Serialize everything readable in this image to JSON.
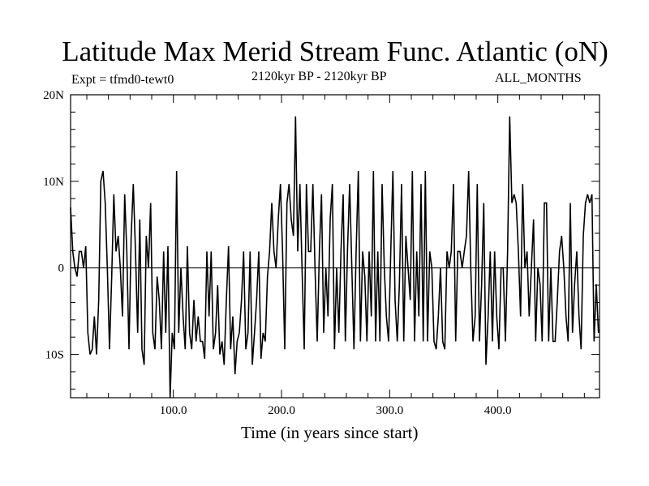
{
  "chart_data": {
    "type": "line",
    "title": "Latitude Max Merid Stream Func. Atlantic (oN)",
    "subtitle_left": "Expt = tfmd0-tewt0",
    "subtitle_center": "2120kyr BP - 2120kyr BP",
    "subtitle_right": "ALL_MONTHS",
    "xlabel": "Time (in years since start)",
    "ylabel": "",
    "xlim": [
      5,
      494
    ],
    "ylim": [
      -15,
      20
    ],
    "x_ticks": [
      {
        "value": 100,
        "label": "100.0"
      },
      {
        "value": 200,
        "label": "200.0"
      },
      {
        "value": 300,
        "label": "300.0"
      },
      {
        "value": 400,
        "label": "400.0"
      }
    ],
    "y_ticks": [
      {
        "value": 20,
        "label": "20N"
      },
      {
        "value": 10,
        "label": "10N"
      },
      {
        "value": 0,
        "label": "0"
      },
      {
        "value": -10,
        "label": "10S"
      }
    ],
    "reference_line": 0,
    "grid": false,
    "x_start": 5,
    "x_step": 2,
    "values": [
      7,
      1.9,
      0,
      -1,
      1.9,
      1.9,
      0,
      2.5,
      -7.5,
      -10,
      -9.4,
      -5.6,
      -10,
      -3.7,
      10,
      11.2,
      7.5,
      0,
      -9.4,
      -1,
      8.5,
      1.9,
      3.7,
      0,
      -5.6,
      8.5,
      1.9,
      -9.4,
      3.7,
      9.7,
      1.9,
      -7.5,
      5.6,
      -9.4,
      -11.2,
      3.7,
      0,
      7.5,
      -7.5,
      -9.4,
      -1,
      -3.7,
      -9.4,
      1.9,
      -7.5,
      2.5,
      -15,
      -7.5,
      -9.4,
      11.2,
      -7.5,
      0,
      -5.6,
      -9.4,
      2.5,
      -7.5,
      -9.4,
      -3.7,
      -8.5,
      -5.6,
      -8.5,
      -8.5,
      -10.5,
      1.9,
      -5.6,
      1.9,
      -9.4,
      -7.5,
      -2,
      -10,
      -8.5,
      -11.2,
      -3.7,
      2.5,
      -9.4,
      -5.6,
      -12.3,
      -8.5,
      -7.5,
      -3.7,
      1.9,
      -9.4,
      -7.5,
      1.9,
      -11.2,
      -7.5,
      -3.7,
      1.9,
      -10.5,
      -7.5,
      -8.5,
      -1,
      1.9,
      7.5,
      1.9,
      0,
      5.6,
      9.7,
      1.9,
      -9.4,
      7.5,
      9.7,
      5.6,
      3.7,
      17.5,
      1.9,
      9.7,
      0,
      -9.4,
      9.7,
      1.9,
      1.9,
      9.7,
      0,
      -8.5,
      1.9,
      8.5,
      -7.5,
      0,
      -5.6,
      5.6,
      9.7,
      -9.4,
      0,
      -7.5,
      1.9,
      8.5,
      -8.5,
      1.9,
      9.7,
      0,
      -9.4,
      1.9,
      11.2,
      -8.5,
      1.9,
      -1,
      -8.5,
      1.9,
      -5.6,
      11.2,
      -8.5,
      1.9,
      -8.5,
      9.7,
      0,
      -5.6,
      -8.5,
      1.9,
      11.2,
      -3.7,
      -8.5,
      -1.9,
      9.7,
      -8.5,
      3.7,
      0,
      -3.7,
      11.2,
      -8.5,
      1.9,
      -5.6,
      9.7,
      -8.5,
      11.2,
      -8.5,
      1.9,
      0,
      -8.5,
      -9.4,
      -5.6,
      0,
      -8.5,
      -9.4,
      1.9,
      0,
      1.9,
      9.7,
      -8.5,
      1.9,
      1.9,
      0,
      1.9,
      3.7,
      11.2,
      0,
      -8.5,
      -5.6,
      9.7,
      -8.5,
      -1.9,
      7.5,
      -11.2,
      -5.6,
      1.9,
      -8.5,
      1.9,
      -5.6,
      -9.4,
      0,
      0,
      -8.5,
      1.9,
      17.5,
      7.5,
      8.5,
      7.5,
      1.9,
      -5.6,
      9.7,
      0,
      1.9,
      -5.6,
      0,
      5.6,
      -8.5,
      0,
      -1.9,
      -8.5,
      7.5,
      7.5,
      -8.5,
      0,
      -8.5,
      -8.5,
      -3.7,
      1.9,
      3.7,
      0,
      -5.6,
      -8.5,
      7.5,
      -7.5,
      -1.9,
      1.9,
      -5.6,
      -9.4,
      3.7,
      7.5,
      8.5,
      7.5,
      8.5,
      -8.5,
      -1.9,
      -7.5
    ],
    "line_color": "#000000"
  }
}
